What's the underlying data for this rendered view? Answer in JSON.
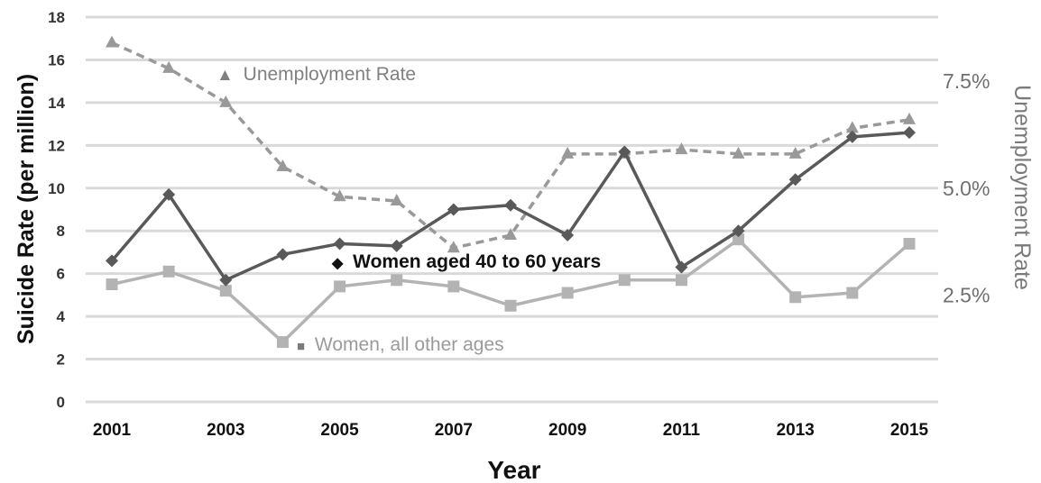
{
  "chart_data": {
    "type": "line",
    "xlabel": "Year",
    "ylabel": "Suicide Rate (per million)",
    "ylabel_right": "Unemployment Rate",
    "x": [
      2001,
      2002,
      2003,
      2004,
      2005,
      2006,
      2007,
      2008,
      2009,
      2010,
      2011,
      2012,
      2013,
      2014,
      2015
    ],
    "x_tick_labels": [
      "2001",
      "2003",
      "2005",
      "2007",
      "2009",
      "2011",
      "2013",
      "2015"
    ],
    "ylim": [
      0,
      18
    ],
    "y_ticks": [
      "0",
      "2",
      "4",
      "6",
      "8",
      "10",
      "12",
      "14",
      "16",
      "18"
    ],
    "ylim_right": [
      0,
      9
    ],
    "y_ticks_right": [
      "2.5%",
      "5.0%",
      "7.5%"
    ],
    "y_ticks_right_values": [
      2.5,
      5.0,
      7.5
    ],
    "grid": "horizontal",
    "series": [
      {
        "name": "Women aged 40 to 60 years",
        "marker": "◆",
        "axis": "left",
        "color": "#595959",
        "style": "solid",
        "values": [
          6.6,
          9.7,
          5.7,
          6.9,
          7.4,
          7.3,
          9.0,
          9.2,
          7.8,
          11.7,
          6.3,
          8.0,
          10.4,
          12.4,
          12.6
        ]
      },
      {
        "name": "Women, all other ages",
        "marker": "■",
        "axis": "left",
        "color": "#b3b3b3",
        "style": "solid",
        "values": [
          5.5,
          6.1,
          5.2,
          2.8,
          5.4,
          5.7,
          5.4,
          4.5,
          5.1,
          5.7,
          5.7,
          7.6,
          4.9,
          5.1,
          7.4
        ]
      },
      {
        "name": "Unemployment Rate",
        "marker": "▲",
        "axis": "right",
        "color": "#999999",
        "style": "dashed",
        "values": [
          8.4,
          7.8,
          7.0,
          5.5,
          4.8,
          4.7,
          3.6,
          3.9,
          5.8,
          5.8,
          5.9,
          5.8,
          5.8,
          6.4,
          6.6
        ]
      }
    ]
  }
}
